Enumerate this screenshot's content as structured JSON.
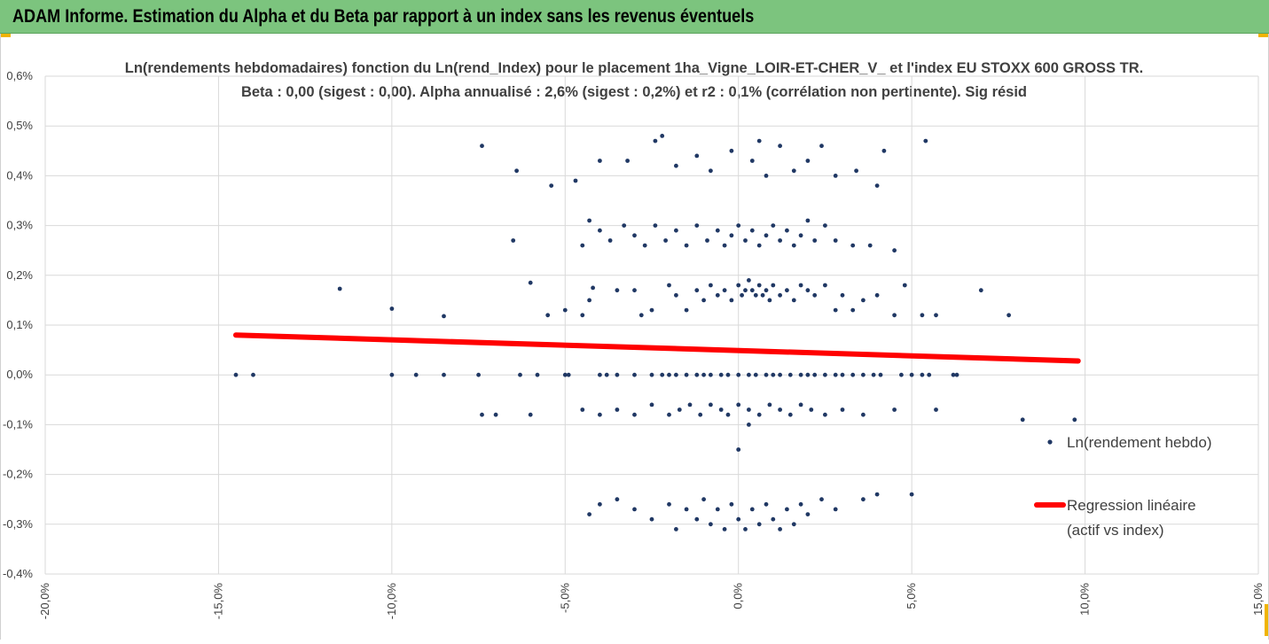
{
  "header": {
    "title": "ADAM Informe. Estimation du Alpha et du Beta par rapport à un index sans les revenus éventuels"
  },
  "colors": {
    "header_bg": "#7cc47e",
    "points": "#203864",
    "regression": "#ff0000",
    "accent": "#f0b400"
  },
  "chart_data": {
    "type": "scatter",
    "title": "Ln(rendements hebdomadaires) fonction du Ln(rend_Index)  pour le placement 1ha_Vigne_LOIR-ET-CHER_V_  et l'index EU STOXX 600 GROSS TR.",
    "subtitle": "Beta : 0,00 (sigest : 0,00).  Alpha annualisé : 2,6% (sigest : 0,2%) et r2 : 0,1% (corrélation non pertinente). Sig résid",
    "xlabel": "",
    "ylabel": "",
    "xlim": [
      -0.2,
      0.15
    ],
    "ylim": [
      -0.004,
      0.006
    ],
    "x_ticks": [
      "-20,0%",
      "-15,0%",
      "-10,0%",
      "-5,0%",
      "0,0%",
      "5,0%",
      "10,0%",
      "15,0%"
    ],
    "y_ticks": [
      "0,6%",
      "0,5%",
      "0,4%",
      "0,3%",
      "0,2%",
      "0,1%",
      "0,0%",
      "-0,1%",
      "-0,2%",
      "-0,3%",
      "-0,4%"
    ],
    "grid": true,
    "legend_position": "right",
    "series": [
      {
        "name": "Ln(rendement hebdo)",
        "kind": "points",
        "points": [
          [
            -0.145,
            0
          ],
          [
            -0.14,
            0
          ],
          [
            -0.1,
            0
          ],
          [
            -0.093,
            0
          ],
          [
            -0.085,
            0
          ],
          [
            -0.075,
            0
          ],
          [
            -0.063,
            0
          ],
          [
            -0.058,
            0
          ],
          [
            -0.05,
            0
          ],
          [
            -0.049,
            0
          ],
          [
            -0.04,
            0
          ],
          [
            -0.038,
            0
          ],
          [
            -0.035,
            0
          ],
          [
            -0.03,
            0
          ],
          [
            -0.025,
            0
          ],
          [
            -0.022,
            0
          ],
          [
            -0.02,
            0
          ],
          [
            -0.018,
            0
          ],
          [
            -0.015,
            0
          ],
          [
            -0.012,
            0
          ],
          [
            -0.01,
            0
          ],
          [
            -0.008,
            0
          ],
          [
            -0.005,
            0
          ],
          [
            -0.003,
            0
          ],
          [
            0.0,
            0
          ],
          [
            0.003,
            0
          ],
          [
            0.005,
            0
          ],
          [
            0.008,
            0
          ],
          [
            0.01,
            0
          ],
          [
            0.012,
            0
          ],
          [
            0.015,
            0
          ],
          [
            0.018,
            0
          ],
          [
            0.02,
            0
          ],
          [
            0.022,
            0
          ],
          [
            0.025,
            0
          ],
          [
            0.028,
            0
          ],
          [
            0.03,
            0
          ],
          [
            0.033,
            0
          ],
          [
            0.036,
            0
          ],
          [
            0.039,
            0
          ],
          [
            0.041,
            0
          ],
          [
            0.047,
            0
          ],
          [
            0.05,
            0
          ],
          [
            0.053,
            0
          ],
          [
            0.055,
            0
          ],
          [
            0.062,
            0
          ],
          [
            0.063,
            0
          ],
          [
            -0.115,
            0.00173
          ],
          [
            -0.1,
            0.00133
          ],
          [
            -0.085,
            0.00118
          ],
          [
            -0.06,
            0.00185
          ],
          [
            -0.055,
            0.0012
          ],
          [
            -0.05,
            0.0013
          ],
          [
            -0.045,
            0.0012
          ],
          [
            -0.043,
            0.0015
          ],
          [
            -0.042,
            0.00175
          ],
          [
            -0.035,
            0.0017
          ],
          [
            -0.03,
            0.0017
          ],
          [
            -0.028,
            0.0012
          ],
          [
            -0.025,
            0.0013
          ],
          [
            -0.02,
            0.0018
          ],
          [
            -0.018,
            0.0016
          ],
          [
            -0.015,
            0.0013
          ],
          [
            -0.012,
            0.0017
          ],
          [
            -0.01,
            0.0015
          ],
          [
            -0.008,
            0.0018
          ],
          [
            -0.006,
            0.0016
          ],
          [
            -0.004,
            0.0017
          ],
          [
            -0.002,
            0.0015
          ],
          [
            0.0,
            0.0018
          ],
          [
            0.001,
            0.0016
          ],
          [
            0.002,
            0.0017
          ],
          [
            0.003,
            0.0019
          ],
          [
            0.004,
            0.0017
          ],
          [
            0.005,
            0.0016
          ],
          [
            0.006,
            0.0018
          ],
          [
            0.007,
            0.0016
          ],
          [
            0.008,
            0.0017
          ],
          [
            0.009,
            0.0015
          ],
          [
            0.01,
            0.0018
          ],
          [
            0.012,
            0.0016
          ],
          [
            0.014,
            0.0017
          ],
          [
            0.016,
            0.0015
          ],
          [
            0.018,
            0.0018
          ],
          [
            0.02,
            0.0017
          ],
          [
            0.022,
            0.0016
          ],
          [
            0.025,
            0.0018
          ],
          [
            0.028,
            0.0013
          ],
          [
            0.03,
            0.0016
          ],
          [
            0.033,
            0.0013
          ],
          [
            0.036,
            0.0015
          ],
          [
            0.04,
            0.0016
          ],
          [
            0.045,
            0.0012
          ],
          [
            0.048,
            0.0018
          ],
          [
            0.053,
            0.0012
          ],
          [
            0.057,
            0.0012
          ],
          [
            0.07,
            0.0017
          ],
          [
            0.078,
            0.0012
          ],
          [
            -0.065,
            0.0027
          ],
          [
            -0.045,
            0.0026
          ],
          [
            -0.043,
            0.0031
          ],
          [
            -0.04,
            0.0029
          ],
          [
            -0.037,
            0.0027
          ],
          [
            -0.033,
            0.003
          ],
          [
            -0.03,
            0.0028
          ],
          [
            -0.027,
            0.0026
          ],
          [
            -0.024,
            0.003
          ],
          [
            -0.021,
            0.0027
          ],
          [
            -0.018,
            0.0029
          ],
          [
            -0.015,
            0.0026
          ],
          [
            -0.012,
            0.003
          ],
          [
            -0.009,
            0.0027
          ],
          [
            -0.006,
            0.0029
          ],
          [
            -0.004,
            0.0026
          ],
          [
            -0.002,
            0.0028
          ],
          [
            0.0,
            0.003
          ],
          [
            0.002,
            0.0027
          ],
          [
            0.004,
            0.0029
          ],
          [
            0.006,
            0.0026
          ],
          [
            0.008,
            0.0028
          ],
          [
            0.01,
            0.003
          ],
          [
            0.012,
            0.0027
          ],
          [
            0.014,
            0.0029
          ],
          [
            0.016,
            0.0026
          ],
          [
            0.018,
            0.0028
          ],
          [
            0.02,
            0.0031
          ],
          [
            0.022,
            0.0027
          ],
          [
            0.025,
            0.003
          ],
          [
            0.028,
            0.0027
          ],
          [
            0.033,
            0.0026
          ],
          [
            0.038,
            0.0026
          ],
          [
            0.045,
            0.0025
          ],
          [
            -0.074,
            0.0046
          ],
          [
            -0.064,
            0.0041
          ],
          [
            -0.054,
            0.0038
          ],
          [
            -0.047,
            0.0039
          ],
          [
            -0.04,
            0.0043
          ],
          [
            -0.032,
            0.0043
          ],
          [
            -0.024,
            0.0047
          ],
          [
            -0.022,
            0.0048
          ],
          [
            -0.018,
            0.0042
          ],
          [
            -0.012,
            0.0044
          ],
          [
            -0.008,
            0.0041
          ],
          [
            -0.002,
            0.0045
          ],
          [
            0.004,
            0.0043
          ],
          [
            0.006,
            0.0047
          ],
          [
            0.008,
            0.004
          ],
          [
            0.012,
            0.0046
          ],
          [
            0.016,
            0.0041
          ],
          [
            0.02,
            0.0043
          ],
          [
            0.024,
            0.0046
          ],
          [
            0.028,
            0.004
          ],
          [
            0.034,
            0.0041
          ],
          [
            0.04,
            0.0038
          ],
          [
            0.042,
            0.0045
          ],
          [
            0.054,
            0.0047
          ],
          [
            -0.074,
            -0.0008
          ],
          [
            -0.07,
            -0.0008
          ],
          [
            -0.06,
            -0.0008
          ],
          [
            -0.045,
            -0.0007
          ],
          [
            -0.04,
            -0.0008
          ],
          [
            -0.035,
            -0.0007
          ],
          [
            -0.03,
            -0.0008
          ],
          [
            -0.025,
            -0.0006
          ],
          [
            -0.02,
            -0.0008
          ],
          [
            -0.017,
            -0.0007
          ],
          [
            -0.014,
            -0.0006
          ],
          [
            -0.011,
            -0.0008
          ],
          [
            -0.008,
            -0.0006
          ],
          [
            -0.005,
            -0.0007
          ],
          [
            -0.003,
            -0.0008
          ],
          [
            0.0,
            -0.0006
          ],
          [
            0.003,
            -0.0007
          ],
          [
            0.006,
            -0.0008
          ],
          [
            0.009,
            -0.0006
          ],
          [
            0.012,
            -0.0007
          ],
          [
            0.015,
            -0.0008
          ],
          [
            0.018,
            -0.0006
          ],
          [
            0.021,
            -0.0007
          ],
          [
            0.025,
            -0.0008
          ],
          [
            0.03,
            -0.0007
          ],
          [
            0.036,
            -0.0008
          ],
          [
            0.045,
            -0.0007
          ],
          [
            0.057,
            -0.0007
          ],
          [
            0.082,
            -0.0009
          ],
          [
            0.097,
            -0.0009
          ],
          [
            0.0,
            -0.0015
          ],
          [
            0.003,
            -0.001
          ],
          [
            -0.043,
            -0.0028
          ],
          [
            -0.04,
            -0.0026
          ],
          [
            -0.035,
            -0.0025
          ],
          [
            -0.03,
            -0.0027
          ],
          [
            -0.025,
            -0.0029
          ],
          [
            -0.02,
            -0.0026
          ],
          [
            -0.018,
            -0.0031
          ],
          [
            -0.015,
            -0.0027
          ],
          [
            -0.012,
            -0.0029
          ],
          [
            -0.01,
            -0.0025
          ],
          [
            -0.008,
            -0.003
          ],
          [
            -0.006,
            -0.0027
          ],
          [
            -0.004,
            -0.0031
          ],
          [
            -0.002,
            -0.0026
          ],
          [
            0.0,
            -0.0029
          ],
          [
            0.002,
            -0.0031
          ],
          [
            0.004,
            -0.0027
          ],
          [
            0.006,
            -0.003
          ],
          [
            0.008,
            -0.0026
          ],
          [
            0.01,
            -0.0029
          ],
          [
            0.012,
            -0.0031
          ],
          [
            0.014,
            -0.0027
          ],
          [
            0.016,
            -0.003
          ],
          [
            0.018,
            -0.0026
          ],
          [
            0.02,
            -0.0028
          ],
          [
            0.024,
            -0.0025
          ],
          [
            0.028,
            -0.0027
          ],
          [
            0.036,
            -0.0025
          ],
          [
            0.04,
            -0.0024
          ],
          [
            0.05,
            -0.0024
          ]
        ]
      },
      {
        "name": "Regression linéaire (actif vs index)",
        "kind": "line",
        "x": [
          -0.145,
          0.098
        ],
        "y": [
          0.0008,
          0.00028
        ]
      }
    ],
    "legend": [
      {
        "label_lines": [
          "Ln(rendement hebdo)"
        ],
        "marker": "dot"
      },
      {
        "label_lines": [
          "Regression linéaire",
          "(actif vs index)"
        ],
        "marker": "line"
      }
    ]
  }
}
